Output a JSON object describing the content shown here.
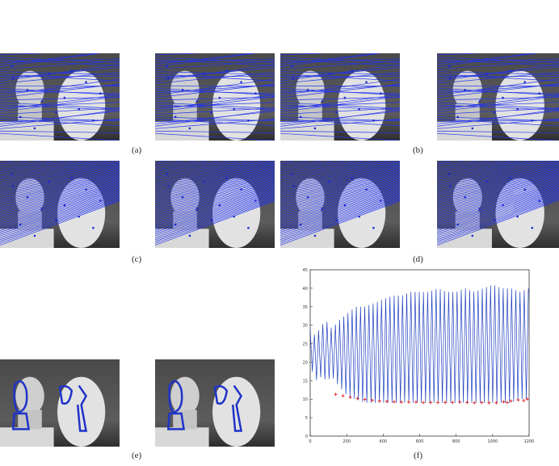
{
  "figure": {
    "captions": {
      "a": "(a)",
      "b": "(b)",
      "c": "(c)",
      "d": "(d)",
      "e": "(e)",
      "f": "(f)"
    }
  },
  "chart_data": {
    "type": "line",
    "xlim": [
      0,
      1200
    ],
    "ylim": [
      0,
      45
    ],
    "xticks": [
      0,
      200,
      400,
      600,
      800,
      1000,
      1200
    ],
    "yticks": [
      0,
      5,
      10,
      15,
      20,
      25,
      30,
      35,
      40,
      45
    ],
    "grid": false,
    "series": [
      {
        "kind": "line",
        "color": "#1f3fbf",
        "x": [
          0,
          30,
          60,
          90,
          120,
          150,
          200,
          250,
          300,
          350,
          400,
          450,
          500,
          550,
          600,
          650,
          700,
          750,
          800,
          850,
          900,
          950,
          1000,
          1050,
          1100,
          1150,
          1200
        ],
        "peak": [
          29,
          27,
          30,
          31,
          29,
          31,
          33,
          35,
          35,
          36,
          37,
          38,
          38,
          39,
          39,
          39,
          40,
          39,
          39,
          40,
          39,
          40,
          41,
          40,
          40,
          39,
          40
        ],
        "trough": [
          19,
          15,
          16,
          15,
          16,
          14,
          11,
          10,
          9,
          9,
          9,
          9,
          9,
          9,
          9,
          9,
          9,
          9,
          9,
          9,
          9,
          9,
          9,
          9,
          9,
          10,
          10
        ]
      },
      {
        "kind": "markers",
        "color": "#e02020",
        "x": [
          140,
          180,
          220,
          260,
          300,
          340,
          380,
          420,
          460,
          500,
          540,
          580,
          620,
          660,
          700,
          740,
          780,
          820,
          860,
          900,
          940,
          980,
          1020,
          1060,
          1080,
          1100,
          1140,
          1170,
          1190
        ],
        "y": [
          11.3,
          10.9,
          10.5,
          10.2,
          9.9,
          9.7,
          9.5,
          9.4,
          9.3,
          9.2,
          9.2,
          9.2,
          9.1,
          9.1,
          9.1,
          9.1,
          9.1,
          9.2,
          9.1,
          9.0,
          9.1,
          9.0,
          9.0,
          9.3,
          9.1,
          9.5,
          9.8,
          9.6,
          10.0
        ]
      }
    ]
  }
}
